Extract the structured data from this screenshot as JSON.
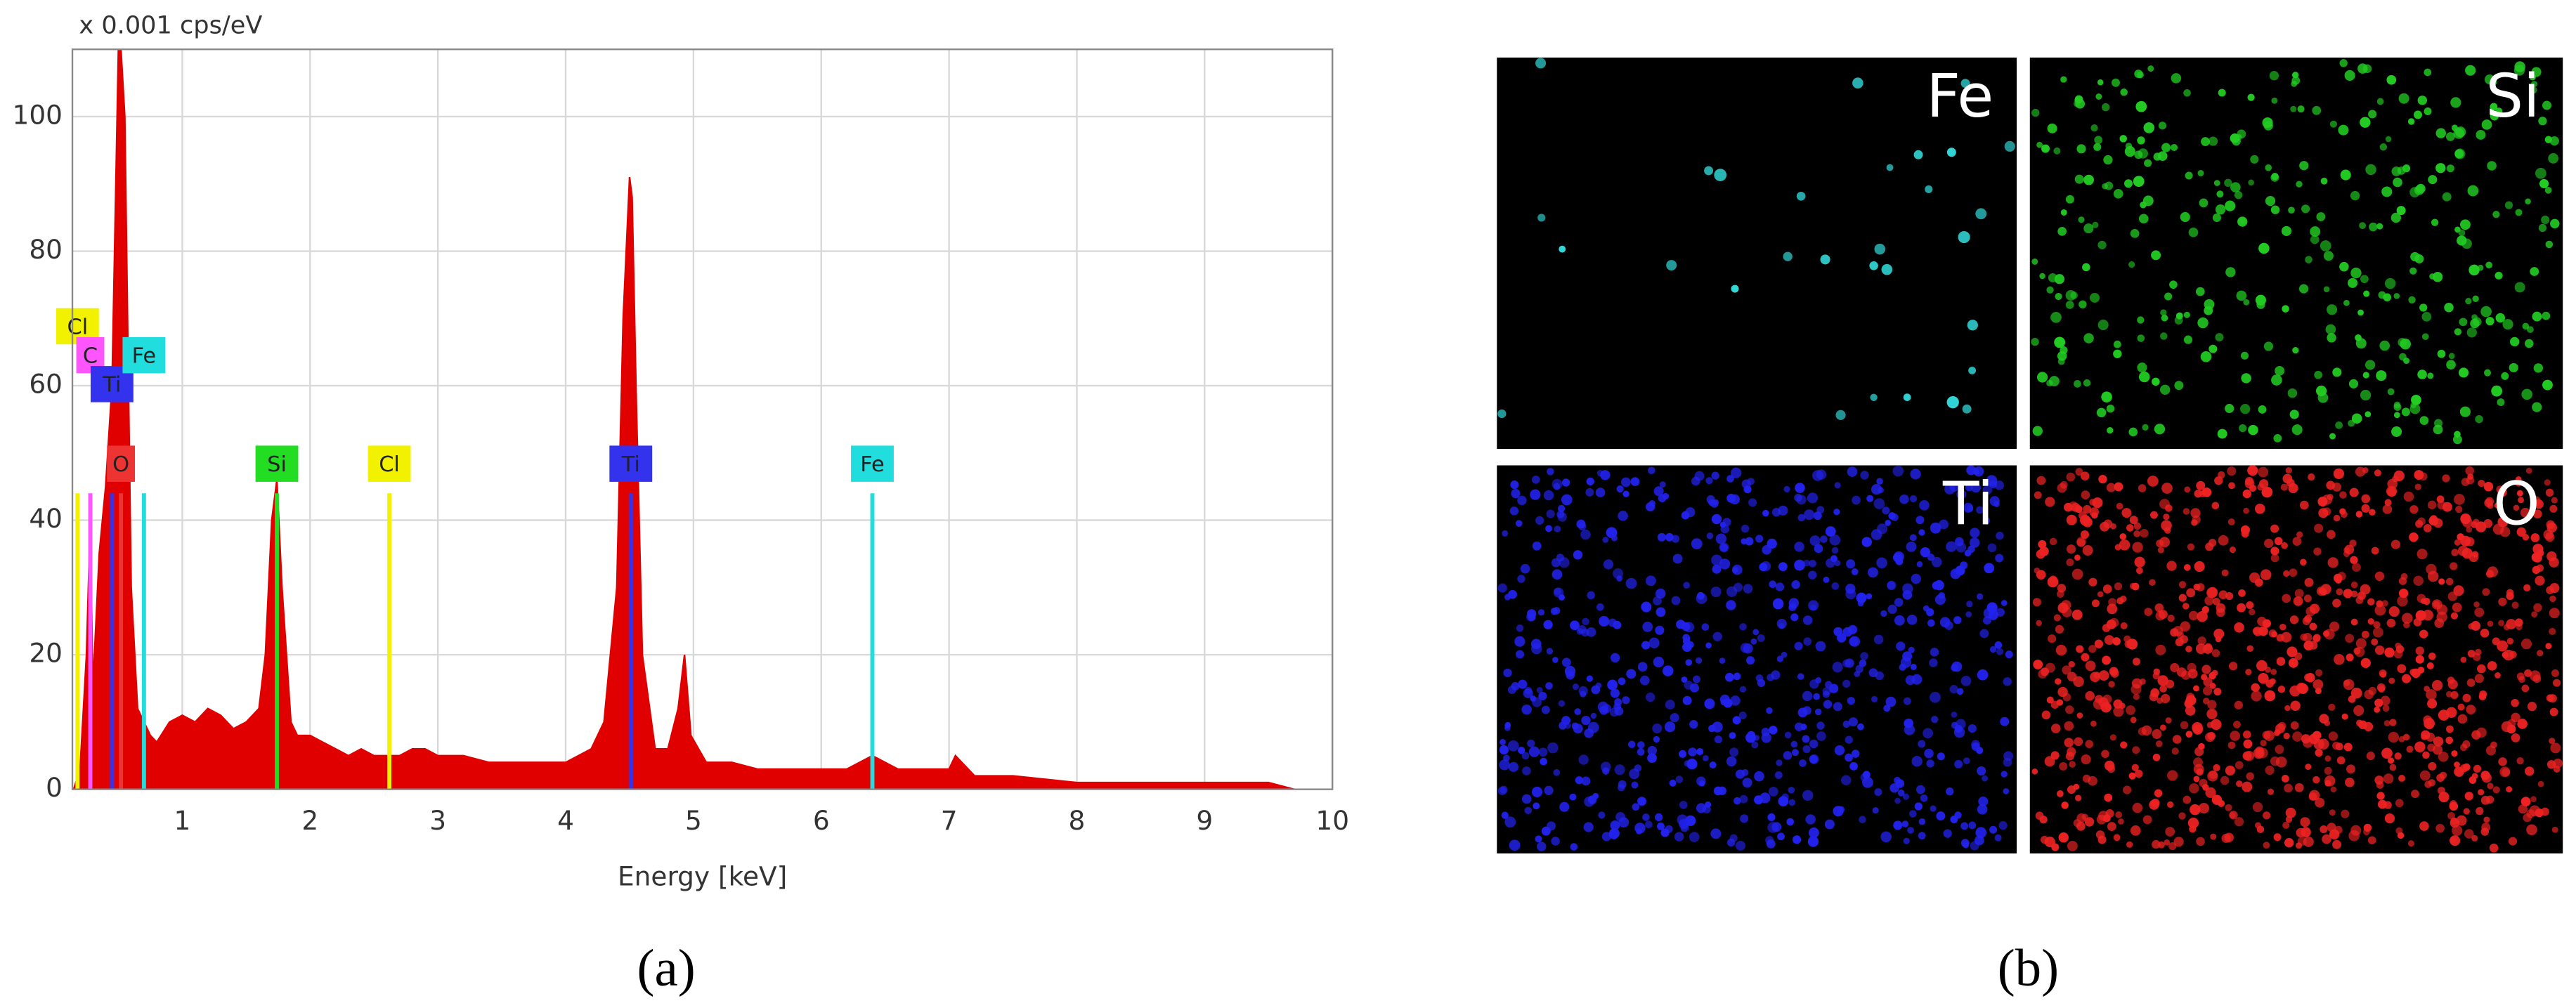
{
  "chart_data": {
    "type": "area",
    "y_axis_label": "x 0.001 cps/eV",
    "x_axis_label": "Energy [keV]",
    "caption": "(a)",
    "color": "#e00000",
    "x": [
      0.15,
      0.2,
      0.25,
      0.28,
      0.3,
      0.35,
      0.4,
      0.45,
      0.5,
      0.52,
      0.55,
      0.6,
      0.65,
      0.7,
      0.75,
      0.8,
      0.9,
      1.0,
      1.1,
      1.2,
      1.3,
      1.4,
      1.5,
      1.6,
      1.65,
      1.7,
      1.74,
      1.78,
      1.85,
      1.9,
      2.0,
      2.1,
      2.2,
      2.3,
      2.4,
      2.5,
      2.6,
      2.7,
      2.8,
      2.9,
      3.0,
      3.2,
      3.4,
      3.6,
      3.8,
      4.0,
      4.2,
      4.3,
      4.4,
      4.45,
      4.5,
      4.52,
      4.55,
      4.6,
      4.7,
      4.8,
      4.88,
      4.93,
      4.98,
      5.1,
      5.3,
      5.5,
      5.7,
      6.0,
      6.2,
      6.4,
      6.6,
      7.0,
      7.05,
      7.2,
      7.5,
      8.0,
      8.5,
      9.0,
      9.5,
      9.7
    ],
    "values": [
      0,
      3,
      20,
      40,
      15,
      35,
      45,
      60,
      110,
      110,
      100,
      30,
      12,
      10,
      8,
      7,
      10,
      11,
      10,
      12,
      11,
      9,
      10,
      12,
      20,
      40,
      46,
      30,
      10,
      8,
      8,
      7,
      6,
      5,
      6,
      5,
      5,
      5,
      6,
      6,
      5,
      5,
      4,
      4,
      4,
      4,
      6,
      10,
      30,
      70,
      91,
      88,
      60,
      20,
      6,
      6,
      12,
      20,
      8,
      4,
      4,
      3,
      3,
      3,
      3,
      5,
      3,
      3,
      5,
      2,
      2,
      1,
      1,
      1,
      1,
      0
    ],
    "xlim": [
      0.14,
      10
    ],
    "ylim": [
      0,
      110
    ],
    "xticks": [
      1,
      2,
      3,
      4,
      5,
      6,
      7,
      8,
      9,
      10
    ],
    "yticks": [
      0,
      20,
      40,
      60,
      80,
      100
    ],
    "grid": true,
    "markers": [
      {
        "label": "Cl",
        "energy": 0.18,
        "height": 44,
        "color": "#f2f200"
      },
      {
        "label": "C",
        "energy": 0.28,
        "height": 44,
        "color": "#ff55ff"
      },
      {
        "label": "Ti",
        "energy": 0.45,
        "height": 44,
        "color": "#3333ee"
      },
      {
        "label": "O",
        "energy": 0.52,
        "height": 44,
        "color": "#ee3333"
      },
      {
        "label": "Fe",
        "energy": 0.7,
        "height": 44,
        "color": "#22dddd"
      },
      {
        "label": "Si",
        "energy": 1.74,
        "height": 44,
        "color": "#22dd22"
      },
      {
        "label": "Cl",
        "energy": 2.62,
        "height": 44,
        "color": "#f2f200"
      },
      {
        "label": "Ti",
        "energy": 4.51,
        "height": 44,
        "color": "#3333ee"
      },
      {
        "label": "Fe",
        "energy": 6.4,
        "height": 44,
        "color": "#22dddd"
      }
    ]
  },
  "maps": {
    "caption": "(b)",
    "panels": [
      {
        "label": "Fe",
        "color": "#33dddd"
      },
      {
        "label": "Si",
        "color": "#22cc22"
      },
      {
        "label": "Ti",
        "color": "#2222ee"
      },
      {
        "label": "O",
        "color": "#ee2222"
      }
    ]
  }
}
